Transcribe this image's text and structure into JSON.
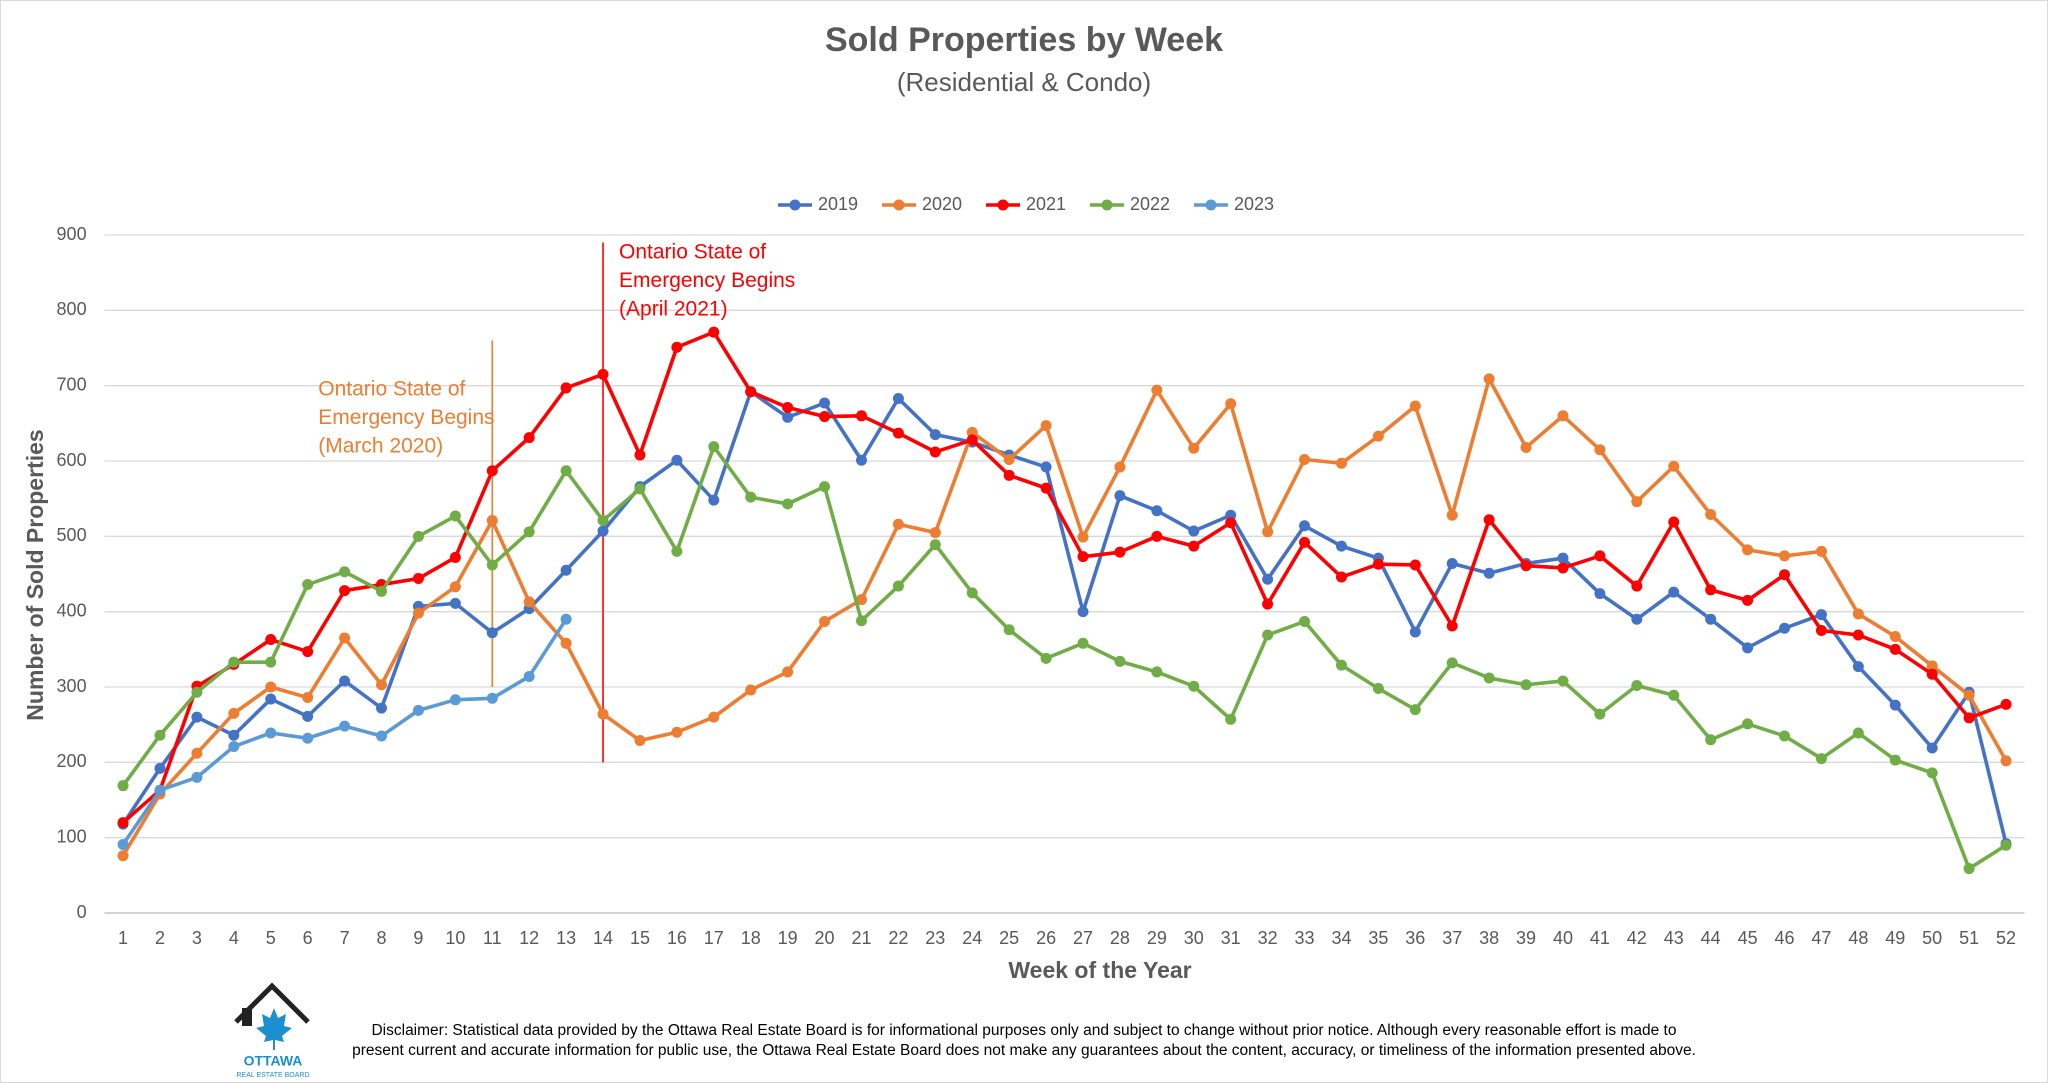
{
  "chart_data": {
    "type": "line",
    "title": "Sold Properties by Week",
    "subtitle": "(Residential & Condo)",
    "x_label": "Week of the Year",
    "y_label": "Number of Sold Properties",
    "categories": [
      "1",
      "2",
      "3",
      "4",
      "5",
      "6",
      "7",
      "8",
      "9",
      "10",
      "11",
      "12",
      "13",
      "14",
      "15",
      "16",
      "17",
      "18",
      "19",
      "20",
      "21",
      "22",
      "23",
      "24",
      "25",
      "26",
      "27",
      "28",
      "29",
      "30",
      "31",
      "32",
      "33",
      "34",
      "35",
      "36",
      "37",
      "38",
      "39",
      "40",
      "41",
      "42",
      "43",
      "44",
      "45",
      "46",
      "47",
      "48",
      "49",
      "50",
      "51",
      "52"
    ],
    "ylim": [
      0,
      900
    ],
    "yticks": [
      0,
      100,
      200,
      300,
      400,
      500,
      600,
      700,
      800,
      900
    ],
    "grid": true,
    "legend": "top",
    "series": [
      {
        "name": "2019",
        "color": "#4472c4",
        "values": [
          118,
          192,
          260,
          236,
          284,
          261,
          308,
          272,
          407,
          411,
          372,
          404,
          455,
          507,
          566,
          601,
          548,
          692,
          658,
          677,
          601,
          683,
          635,
          625,
          608,
          592,
          400,
          554,
          534,
          507,
          528,
          443,
          514,
          487,
          471,
          373,
          464,
          451,
          464,
          471,
          424,
          390,
          426,
          390,
          352,
          378,
          396,
          327,
          276,
          219,
          293,
          92
        ]
      },
      {
        "name": "2020",
        "color": "#ed7d31",
        "values": [
          76,
          158,
          212,
          265,
          300,
          286,
          365,
          303,
          398,
          433,
          521,
          413,
          358,
          264,
          229,
          240,
          260,
          296,
          320,
          387,
          416,
          516,
          505,
          638,
          602,
          647,
          499,
          592,
          694,
          617,
          676,
          506,
          602,
          597,
          633,
          673,
          528,
          709,
          618,
          660,
          615,
          546,
          593,
          529,
          482,
          474,
          480,
          397,
          367,
          328,
          289,
          202
        ]
      },
      {
        "name": "2021",
        "color": "#ff0000",
        "values": [
          120,
          163,
          301,
          330,
          363,
          347,
          428,
          436,
          444,
          472,
          587,
          631,
          697,
          715,
          608,
          751,
          771,
          692,
          671,
          659,
          660,
          637,
          612,
          628,
          581,
          564,
          473,
          479,
          500,
          487,
          518,
          410,
          492,
          446,
          463,
          462,
          381,
          522,
          461,
          458,
          474,
          434,
          519,
          429,
          415,
          449,
          375,
          369,
          350,
          317,
          259,
          277
        ]
      },
      {
        "name": "2022",
        "color": "#70ad47",
        "values": [
          169,
          236,
          293,
          333,
          333,
          436,
          453,
          427,
          500,
          527,
          462,
          506,
          587,
          521,
          563,
          480,
          619,
          552,
          543,
          566,
          388,
          434,
          489,
          425,
          376,
          338,
          358,
          334,
          320,
          301,
          257,
          369,
          387,
          329,
          298,
          270,
          332,
          312,
          303,
          308,
          264,
          302,
          289,
          230,
          251,
          235,
          205,
          239,
          203,
          186,
          59,
          90
        ]
      },
      {
        "name": "2023",
        "color": "#5b9bd5",
        "values": [
          91,
          163,
          180,
          221,
          239,
          232,
          248,
          235,
          269,
          283,
          285,
          314,
          390,
          null,
          null,
          null,
          null,
          null,
          null,
          null,
          null,
          null,
          null,
          null,
          null,
          null,
          null,
          null,
          null,
          null,
          null,
          null,
          null,
          null,
          null,
          null,
          null,
          null,
          null,
          null,
          null,
          null,
          null,
          null,
          null,
          null,
          null,
          null,
          null,
          null,
          null,
          null
        ]
      }
    ],
    "annotations": [
      {
        "lines": [
          "Ontario State of",
          "Emergency Begins",
          "(March 2020)"
        ],
        "week": "11",
        "y_range": [
          300,
          760
        ],
        "color": "#ed7d31"
      },
      {
        "lines": [
          "Ontario State of",
          "Emergency Begins",
          "(April 2021)"
        ],
        "week": "14",
        "y_range": [
          200,
          890
        ],
        "color": "#ff0000"
      }
    ]
  },
  "footer": {
    "disclaimer": [
      "Disclaimer: Statistical data provided by the Ottawa Real Estate Board is for informational purposes only and subject to change without prior notice. Although every reasonable effort is made to",
      "present current and accurate information for public use, the Ottawa Real Estate Board does not make any guarantees about the content, accuracy, or timeliness of the information presented above."
    ],
    "logo": [
      "OTTAWA",
      "REAL ESTATE BOARD"
    ]
  }
}
